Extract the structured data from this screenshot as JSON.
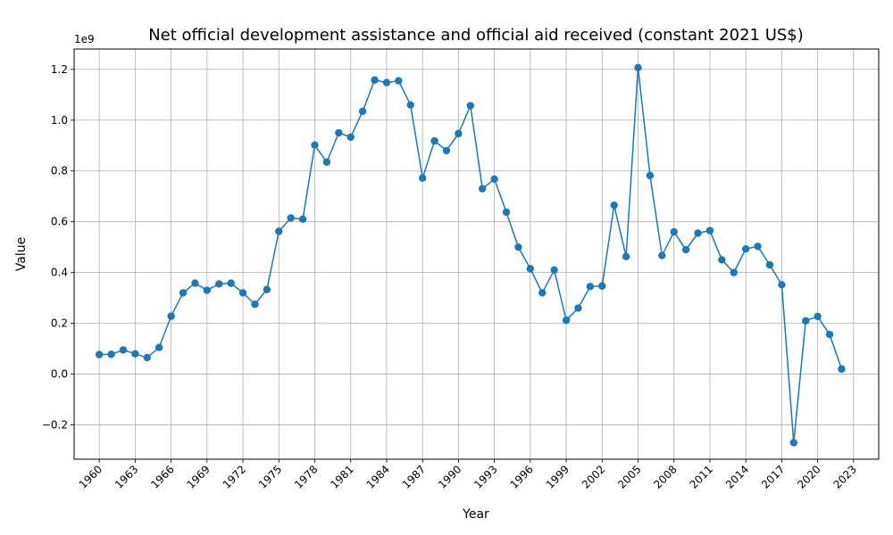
{
  "chart_data": {
    "type": "line",
    "title": "Net official development assistance and official aid received (constant 2021 US$)",
    "xlabel": "Year",
    "ylabel": "Value",
    "y_offset_label": "1e9",
    "x_ticks": [
      1960,
      1963,
      1966,
      1969,
      1972,
      1975,
      1978,
      1981,
      1984,
      1987,
      1990,
      1993,
      1996,
      1999,
      2002,
      2005,
      2008,
      2011,
      2014,
      2017,
      2020,
      2023
    ],
    "y_ticks": [
      -0.2,
      0.0,
      0.2,
      0.4,
      0.6,
      0.8,
      1.0,
      1.2
    ],
    "y_tick_labels": [
      "−0.2",
      "0.0",
      "0.2",
      "0.4",
      "0.6",
      "0.8",
      "1.0",
      "1.2"
    ],
    "xlim": [
      1957.9,
      2025.1
    ],
    "ylim": [
      -0.335,
      1.28
    ],
    "y_unit_multiplier": 1000000000,
    "grid": true,
    "color": "#1f77b4",
    "series": [
      {
        "x": [
          1960,
          1961,
          1962,
          1963,
          1964,
          1965,
          1966,
          1967,
          1968,
          1969,
          1970,
          1971,
          1972,
          1973,
          1974,
          1975,
          1976,
          1977,
          1978,
          1979,
          1980,
          1981,
          1982,
          1983,
          1984,
          1985,
          1986,
          1987,
          1988,
          1989,
          1990,
          1991,
          1992,
          1993,
          1994,
          1995,
          1996,
          1997,
          1998,
          1999,
          2000,
          2001,
          2002,
          2003,
          2004,
          2005,
          2006,
          2007,
          2008,
          2009,
          2010,
          2011,
          2012,
          2013,
          2014,
          2015,
          2016,
          2017,
          2018,
          2019,
          2020,
          2021,
          2022
        ],
        "values": [
          0.077,
          0.078,
          0.095,
          0.08,
          0.065,
          0.105,
          0.228,
          0.32,
          0.358,
          0.33,
          0.355,
          0.358,
          0.32,
          0.275,
          0.333,
          0.562,
          0.615,
          0.61,
          0.902,
          0.835,
          0.95,
          0.933,
          1.035,
          1.158,
          1.148,
          1.155,
          1.06,
          0.772,
          0.918,
          0.88,
          0.947,
          1.057,
          0.73,
          0.768,
          0.638,
          0.5,
          0.415,
          0.32,
          0.41,
          0.212,
          0.26,
          0.345,
          0.347,
          0.665,
          0.463,
          1.207,
          0.782,
          0.467,
          0.56,
          0.49,
          0.555,
          0.565,
          0.45,
          0.4,
          0.493,
          0.503,
          0.43,
          0.352,
          -0.27,
          0.21,
          0.227,
          0.156,
          0.02
        ]
      }
    ]
  }
}
